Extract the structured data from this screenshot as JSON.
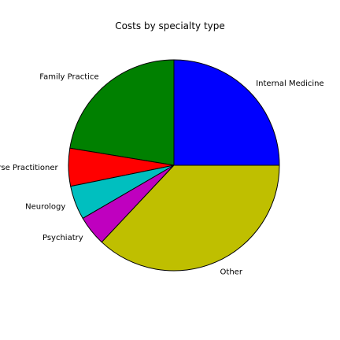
{
  "chart_data": {
    "type": "pie",
    "title": "Costs by specialty type",
    "slices": [
      {
        "label": "Internal Medicine",
        "value": 25.0,
        "color": "#0000ff"
      },
      {
        "label": "Family Practice",
        "value": 22.4,
        "color": "#008000"
      },
      {
        "label": "Nurse Practitioner",
        "value": 5.8,
        "color": "#ff0000"
      },
      {
        "label": "Neurology",
        "value": 5.2,
        "color": "#00bfbf"
      },
      {
        "label": "Psychiatry",
        "value": 4.6,
        "color": "#bf00bf"
      },
      {
        "label": "Other",
        "value": 37.0,
        "color": "#bfbf00"
      }
    ],
    "start_angle_deg": 0,
    "direction": "counterclockwise",
    "edge_color": "#000000"
  }
}
